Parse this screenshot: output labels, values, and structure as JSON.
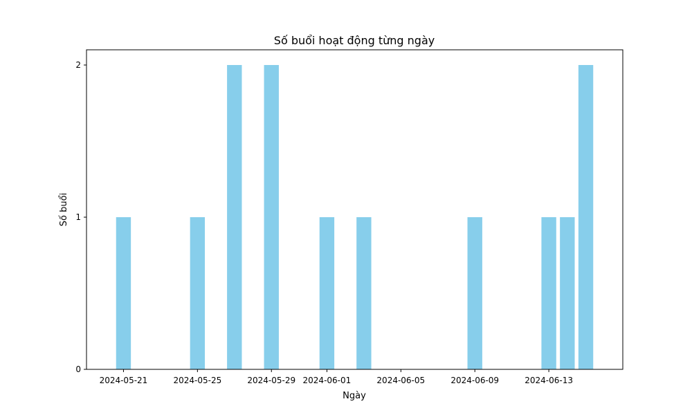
{
  "chart_data": {
    "type": "bar",
    "title": "Số buổi hoạt động từng ngày",
    "xlabel": "Ngày",
    "ylabel": "Số buổi",
    "categories": [
      "2024-05-21",
      "2024-05-25",
      "2024-05-27",
      "2024-05-29",
      "2024-06-01",
      "2024-06-03",
      "2024-06-09",
      "2024-06-13",
      "2024-06-14",
      "2024-06-15"
    ],
    "values": [
      1,
      1,
      2,
      2,
      1,
      1,
      1,
      1,
      1,
      2
    ],
    "xticks": [
      "2024-05-21",
      "2024-05-25",
      "2024-05-29",
      "2024-06-01",
      "2024-06-05",
      "2024-06-09",
      "2024-06-13"
    ],
    "yticks": [
      0,
      1,
      2
    ],
    "xlim": [
      "2024-05-19",
      "2024-06-17"
    ],
    "ylim": [
      0,
      2.1
    ],
    "grid": false,
    "bar_color": "#87CEEB"
  }
}
